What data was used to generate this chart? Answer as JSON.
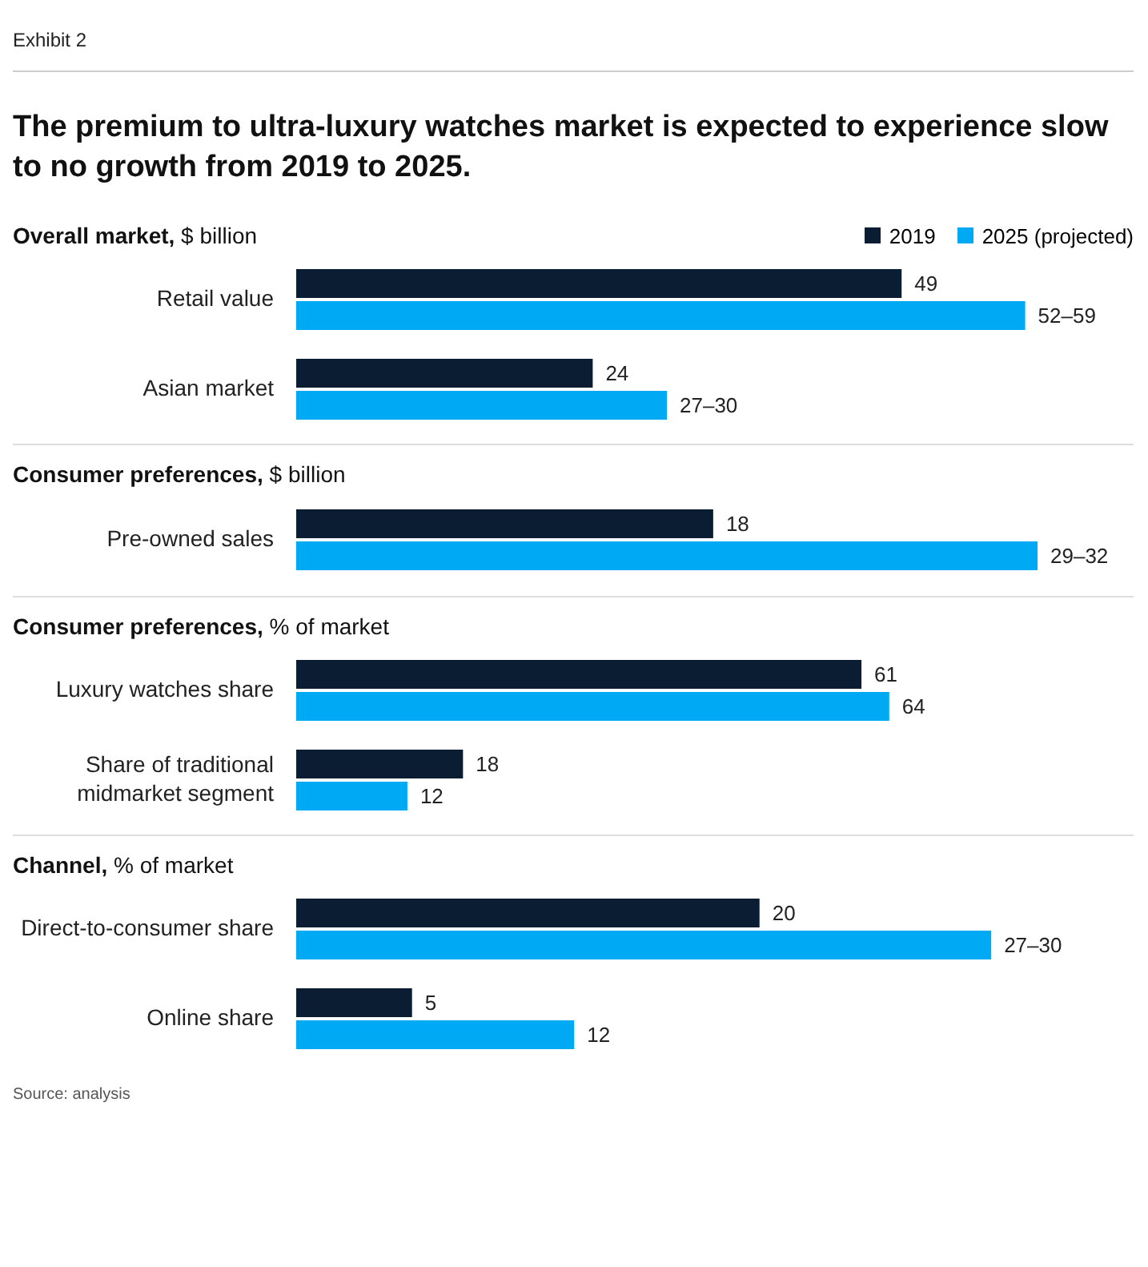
{
  "chart_data": [
    {
      "type": "bar",
      "orientation": "horizontal",
      "subtitle": "Exhibit 2",
      "title": "The premium to ultra-luxury watches market is expected to experience slow to no growth from 2019 to 2025.",
      "ylabel": "Overall market, $ billion",
      "categories": [
        "Retail value",
        "Asian market"
      ],
      "tick_labels": "y",
      "legend": "top right",
      "grid": false,
      "series": [
        {
          "name": "2019",
          "color": "#0b1d33",
          "values": [
            49,
            24
          ],
          "value_labels": [
            "49",
            "24"
          ]
        },
        {
          "name": "2025 (projected)",
          "color": "#00a9f4",
          "values": [
            59,
            30
          ],
          "value_labels": [
            "52–59",
            "27–30"
          ]
        }
      ]
    },
    {
      "type": "bar",
      "orientation": "horizontal",
      "ylabel": "Consumer preferences, $ billion",
      "categories": [
        "Pre-owned sales"
      ],
      "tick_labels": "y",
      "grid": false,
      "series": [
        {
          "color": "#0b1d33",
          "values": [
            18
          ],
          "value_labels": [
            "18"
          ]
        },
        {
          "color": "#00a9f4",
          "values": [
            32
          ],
          "value_labels": [
            "29–32"
          ]
        }
      ]
    },
    {
      "type": "bar",
      "orientation": "horizontal",
      "ylabel": "Consumer preferences, % of market",
      "categories": [
        "Luxury watches share",
        "Share of traditional midmarket segment"
      ],
      "tick_labels": "y",
      "grid": false,
      "series": [
        {
          "color": "#0b1d33",
          "values": [
            61,
            18
          ],
          "value_labels": [
            "61",
            "18"
          ]
        },
        {
          "color": "#00a9f4",
          "values": [
            64,
            12
          ],
          "value_labels": [
            "64",
            "12"
          ]
        }
      ]
    },
    {
      "type": "bar",
      "orientation": "horizontal",
      "ylabel": "Channel, % of market",
      "categories": [
        "Direct-to-consumer share",
        "Online share"
      ],
      "tick_labels": "y",
      "grid": false,
      "annotations": [
        "Source: analysis"
      ],
      "series": [
        {
          "color": "#0b1d33",
          "values": [
            20,
            5
          ],
          "value_labels": [
            "20",
            "5"
          ]
        },
        {
          "color": "#00a9f4",
          "values": [
            30,
            12
          ],
          "value_labels": [
            "27–30",
            "12"
          ]
        }
      ]
    }
  ]
}
